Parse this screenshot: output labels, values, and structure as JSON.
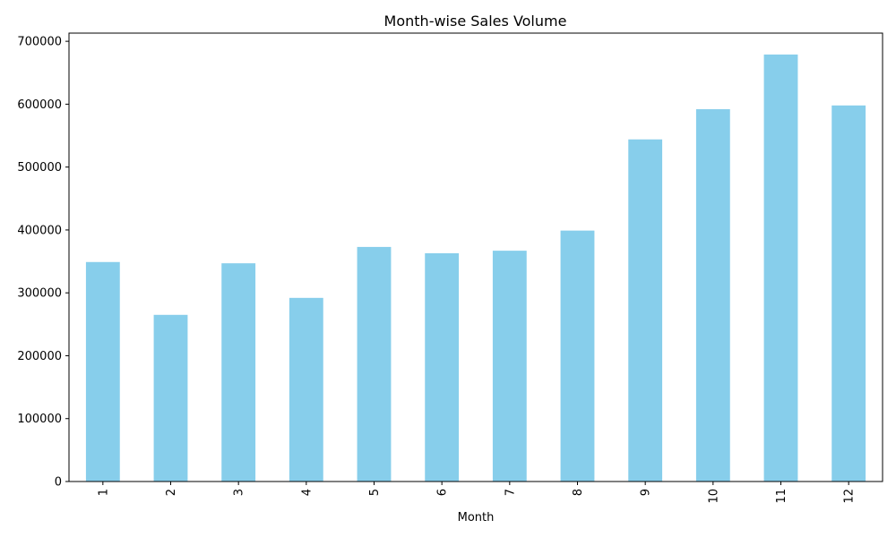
{
  "chart_data": {
    "type": "bar",
    "title": "Month-wise Sales Volume",
    "xlabel": "Month",
    "ylabel": "",
    "categories": [
      "1",
      "2",
      "3",
      "4",
      "5",
      "6",
      "7",
      "8",
      "9",
      "10",
      "11",
      "12"
    ],
    "values": [
      349000,
      265000,
      347000,
      292000,
      373000,
      363000,
      367000,
      399000,
      544000,
      592000,
      679000,
      598000
    ],
    "ylim": [
      0,
      713000
    ],
    "yticks": [
      0,
      100000,
      200000,
      300000,
      400000,
      500000,
      600000,
      700000
    ],
    "ytick_labels": [
      "0",
      "100000",
      "200000",
      "300000",
      "400000",
      "500000",
      "600000",
      "700000"
    ],
    "xtick_rotation": "vertical",
    "bar_color": "#87CEEB",
    "grid": false,
    "legend": "none"
  }
}
